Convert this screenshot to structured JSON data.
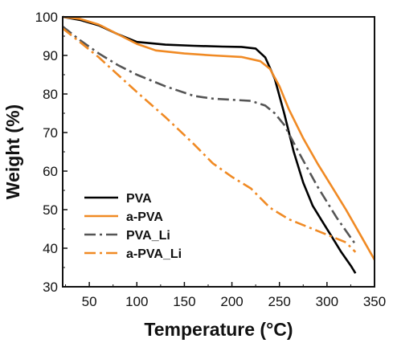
{
  "chart_data": {
    "type": "line",
    "title": "",
    "xlabel": "Temperature (°C)",
    "ylabel": "Weight (%)",
    "xlim": [
      22,
      350
    ],
    "ylim": [
      30,
      100
    ],
    "xticks": [
      50,
      100,
      150,
      200,
      250,
      300,
      350
    ],
    "yticks": [
      30,
      40,
      50,
      60,
      70,
      80,
      90,
      100
    ],
    "grid": false,
    "legend_position": "bottom-left",
    "series": [
      {
        "name": "PVA",
        "color": "#000000",
        "dash": "solid",
        "x": [
          22,
          40,
          60,
          80,
          100,
          130,
          160,
          190,
          210,
          225,
          235,
          245,
          255,
          265,
          275,
          285,
          295,
          305,
          315,
          325,
          330
        ],
        "y": [
          100,
          99.2,
          97.8,
          95.5,
          93.5,
          92.8,
          92.5,
          92.3,
          92.2,
          91.8,
          89.5,
          84,
          75,
          65,
          57,
          51,
          47,
          43,
          39,
          35.5,
          33.5
        ]
      },
      {
        "name": "a-PVA",
        "color": "#F08A24",
        "dash": "solid",
        "x": [
          22,
          40,
          60,
          80,
          100,
          120,
          150,
          180,
          210,
          230,
          240,
          250,
          260,
          275,
          290,
          305,
          320,
          335,
          350
        ],
        "y": [
          100,
          99.5,
          98,
          95.5,
          93,
          91.3,
          90.5,
          90,
          89.6,
          88.5,
          86.5,
          82,
          76,
          68.5,
          62,
          56,
          50,
          43.5,
          37
        ]
      },
      {
        "name": "PVA_Li",
        "color": "#555555",
        "dash": "dashdot",
        "x": [
          22,
          40,
          60,
          80,
          100,
          130,
          160,
          180,
          200,
          220,
          235,
          245,
          255,
          270,
          290,
          310,
          330
        ],
        "y": [
          97.5,
          94,
          90.5,
          87.5,
          85,
          82,
          79.5,
          78.8,
          78.5,
          78.2,
          77,
          75,
          72,
          65,
          56,
          48,
          41
        ]
      },
      {
        "name": "a-PVA_Li",
        "color": "#F08A24",
        "dash": "dashdot",
        "x": [
          22,
          40,
          60,
          80,
          100,
          130,
          160,
          180,
          200,
          220,
          240,
          260,
          280,
          300,
          320,
          330
        ],
        "y": [
          97,
          93.5,
          89.5,
          85,
          80.5,
          74,
          67,
          62,
          58.5,
          55.5,
          50.5,
          47.5,
          45.5,
          43.5,
          41.5,
          39
        ]
      }
    ]
  }
}
